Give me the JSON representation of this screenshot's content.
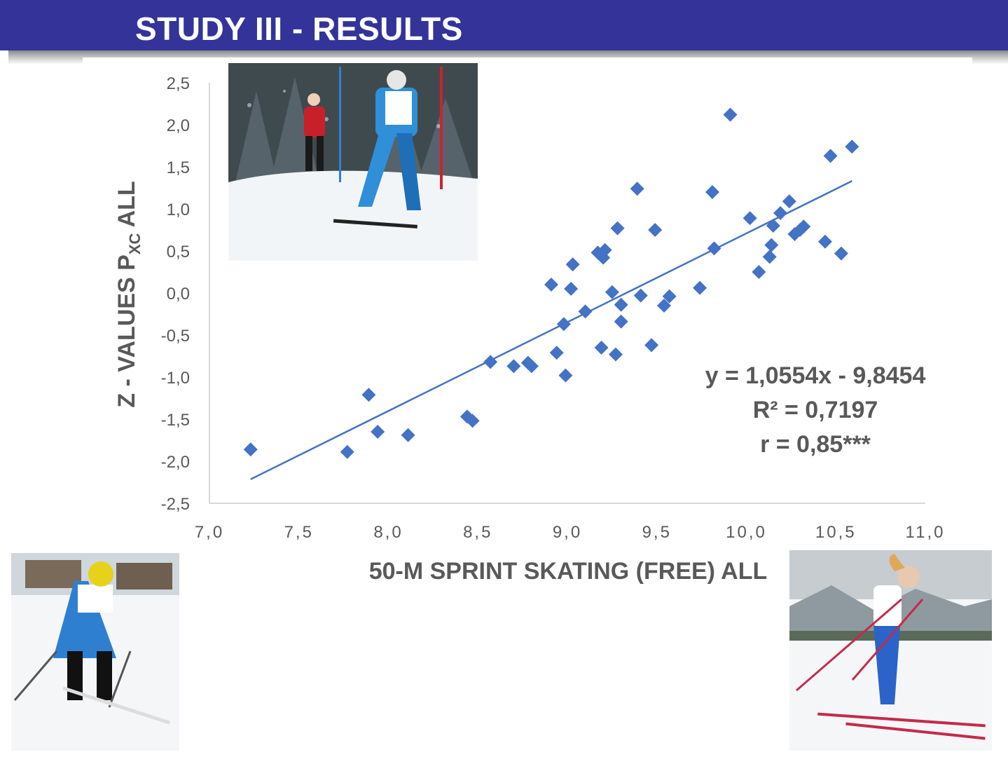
{
  "header": {
    "title": "STUDY III - RESULTS",
    "bar_color": "#33339a"
  },
  "photos": [
    {
      "subject": "cross-country skiers racing on a snowy course"
    },
    {
      "subject": "young skier in yellow hat leaning forward on skis"
    },
    {
      "subject": "female skier in skating stride with poles"
    }
  ],
  "chart_data": {
    "type": "scatter",
    "xlabel": "50-M SPRINT SKATING (FREE) ALL",
    "ylabel": "Z - VALUES P",
    "ylabel_sub": "XC",
    "ylabel_tail": "ALL",
    "xlim": [
      7.0,
      11.0
    ],
    "ylim": [
      -2.5,
      2.5
    ],
    "x_ticks": [
      "7,0",
      "7,5",
      "8,0",
      "8,5",
      "9,0",
      "9,5",
      "10,0",
      "10,5",
      "11,0"
    ],
    "y_ticks": [
      "2,5",
      "2,0",
      "1,5",
      "1,0",
      "0,5",
      "0,0",
      "-0,5",
      "-1,0",
      "-1,5",
      "-2,0",
      "-2,5"
    ],
    "grid": false,
    "marker_color": "#4472c4",
    "trendline": {
      "slope": 1.0554,
      "intercept": -9.8454,
      "x_range": [
        7.23,
        10.59
      ]
    },
    "annotations": [
      "y = 1,0554x - 9,8454",
      "R² = 0,7197",
      "r = 0,85***"
    ],
    "points": [
      {
        "x": 7.23,
        "y": -1.86
      },
      {
        "x": 7.77,
        "y": -1.89
      },
      {
        "x": 7.89,
        "y": -1.21
      },
      {
        "x": 7.94,
        "y": -1.65
      },
      {
        "x": 8.11,
        "y": -1.69
      },
      {
        "x": 8.44,
        "y": -1.47
      },
      {
        "x": 8.47,
        "y": -1.52
      },
      {
        "x": 8.57,
        "y": -0.82
      },
      {
        "x": 8.7,
        "y": -0.87
      },
      {
        "x": 8.78,
        "y": -0.83
      },
      {
        "x": 8.8,
        "y": -0.87
      },
      {
        "x": 8.91,
        "y": 0.1
      },
      {
        "x": 8.94,
        "y": -0.71
      },
      {
        "x": 8.98,
        "y": -0.37
      },
      {
        "x": 8.99,
        "y": -0.98
      },
      {
        "x": 9.02,
        "y": 0.05
      },
      {
        "x": 9.03,
        "y": 0.34
      },
      {
        "x": 9.1,
        "y": -0.22
      },
      {
        "x": 9.17,
        "y": 0.48
      },
      {
        "x": 9.19,
        "y": -0.65
      },
      {
        "x": 9.2,
        "y": 0.42
      },
      {
        "x": 9.21,
        "y": 0.51
      },
      {
        "x": 9.25,
        "y": 0.01
      },
      {
        "x": 9.27,
        "y": -0.73
      },
      {
        "x": 9.28,
        "y": 0.77
      },
      {
        "x": 9.3,
        "y": -0.34
      },
      {
        "x": 9.3,
        "y": -0.14
      },
      {
        "x": 9.39,
        "y": 1.24
      },
      {
        "x": 9.41,
        "y": -0.03
      },
      {
        "x": 9.47,
        "y": -0.62
      },
      {
        "x": 9.49,
        "y": 0.75
      },
      {
        "x": 9.54,
        "y": -0.15
      },
      {
        "x": 9.57,
        "y": -0.04
      },
      {
        "x": 9.74,
        "y": 0.06
      },
      {
        "x": 9.81,
        "y": 1.2
      },
      {
        "x": 9.82,
        "y": 0.53
      },
      {
        "x": 9.91,
        "y": 2.12
      },
      {
        "x": 10.02,
        "y": 0.89
      },
      {
        "x": 10.07,
        "y": 0.25
      },
      {
        "x": 10.13,
        "y": 0.43
      },
      {
        "x": 10.14,
        "y": 0.57
      },
      {
        "x": 10.15,
        "y": 0.8
      },
      {
        "x": 10.19,
        "y": 0.95
      },
      {
        "x": 10.24,
        "y": 1.09
      },
      {
        "x": 10.27,
        "y": 0.7
      },
      {
        "x": 10.3,
        "y": 0.75
      },
      {
        "x": 10.32,
        "y": 0.79
      },
      {
        "x": 10.44,
        "y": 0.61
      },
      {
        "x": 10.47,
        "y": 1.63
      },
      {
        "x": 10.53,
        "y": 0.47
      },
      {
        "x": 10.59,
        "y": 1.74
      }
    ]
  }
}
